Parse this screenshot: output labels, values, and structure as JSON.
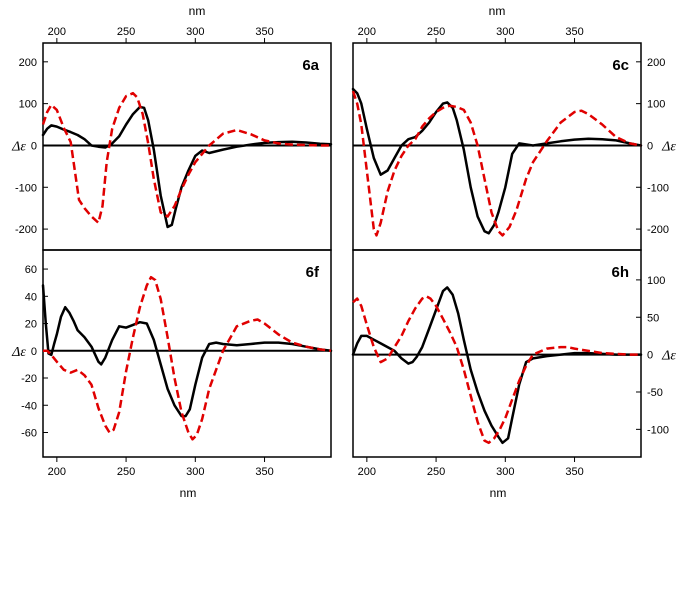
{
  "figure": {
    "top_xlabel": "nm",
    "bottom_xlabel": "nm"
  },
  "chart_data": [
    {
      "type": "line",
      "panel_label": "6a",
      "xlim": [
        190,
        398
      ],
      "ylim": [
        -250,
        245
      ],
      "ylabel": "Δε",
      "xticks": [
        200,
        250,
        300,
        350
      ],
      "yticks": [
        -200,
        -100,
        0,
        100,
        200
      ],
      "series": [
        {
          "style": "solid",
          "color": "#000000",
          "x": [
            190,
            193,
            196,
            200,
            205,
            210,
            215,
            220,
            225,
            230,
            235,
            240,
            245,
            250,
            255,
            260,
            263,
            266,
            270,
            275,
            280,
            283,
            286,
            290,
            295,
            300,
            305,
            310,
            320,
            330,
            340,
            350,
            360,
            370,
            380,
            390,
            398
          ],
          "y": [
            25,
            40,
            48,
            45,
            38,
            32,
            25,
            15,
            0,
            -3,
            -5,
            5,
            22,
            50,
            75,
            92,
            90,
            60,
            -10,
            -120,
            -195,
            -190,
            -150,
            -100,
            -60,
            -25,
            -12,
            -18,
            -10,
            -3,
            2,
            6,
            8,
            9,
            7,
            4,
            3
          ]
        },
        {
          "style": "dashed",
          "color": "#e00000",
          "x": [
            190,
            193,
            196,
            200,
            205,
            210,
            213,
            216,
            220,
            225,
            230,
            233,
            236,
            240,
            245,
            250,
            255,
            258,
            262,
            266,
            270,
            275,
            280,
            285,
            290,
            295,
            300,
            310,
            320,
            330,
            340,
            350,
            360,
            370,
            380,
            390,
            398
          ],
          "y": [
            50,
            80,
            97,
            85,
            42,
            8,
            -60,
            -130,
            -150,
            -170,
            -185,
            -145,
            -40,
            40,
            90,
            118,
            125,
            115,
            75,
            5,
            -80,
            -160,
            -170,
            -145,
            -105,
            -70,
            -40,
            0,
            28,
            37,
            27,
            12,
            5,
            2,
            1,
            0,
            0
          ]
        }
      ]
    },
    {
      "type": "line",
      "panel_label": "6c",
      "xlim": [
        190,
        398
      ],
      "ylim": [
        -250,
        245
      ],
      "ylabel": "Δε",
      "xticks": [
        200,
        250,
        300,
        350
      ],
      "yticks": [
        -200,
        -100,
        0,
        100,
        200
      ],
      "series": [
        {
          "style": "solid",
          "color": "#000000",
          "x": [
            190,
            193,
            196,
            200,
            205,
            210,
            215,
            220,
            225,
            230,
            235,
            240,
            245,
            250,
            255,
            258,
            262,
            265,
            270,
            275,
            280,
            285,
            288,
            292,
            295,
            300,
            305,
            310,
            320,
            330,
            340,
            350,
            360,
            370,
            380,
            390,
            398
          ],
          "y": [
            135,
            125,
            100,
            40,
            -30,
            -70,
            -60,
            -30,
            0,
            15,
            20,
            35,
            55,
            80,
            100,
            103,
            90,
            60,
            -10,
            -100,
            -170,
            -205,
            -210,
            -190,
            -160,
            -100,
            -20,
            5,
            0,
            5,
            10,
            14,
            16,
            15,
            12,
            5,
            0
          ]
        },
        {
          "style": "dashed",
          "color": "#e00000",
          "x": [
            190,
            193,
            196,
            200,
            205,
            207,
            210,
            215,
            220,
            225,
            230,
            235,
            240,
            245,
            250,
            255,
            260,
            265,
            270,
            275,
            280,
            285,
            290,
            295,
            298,
            303,
            308,
            315,
            320,
            330,
            340,
            350,
            355,
            360,
            370,
            380,
            390,
            398
          ],
          "y": [
            130,
            100,
            50,
            -60,
            -200,
            -215,
            -185,
            -110,
            -60,
            -25,
            0,
            15,
            45,
            65,
            80,
            90,
            95,
            92,
            85,
            55,
            0,
            -80,
            -160,
            -205,
            -215,
            -195,
            -155,
            -80,
            -40,
            10,
            55,
            80,
            83,
            75,
            50,
            20,
            5,
            0
          ]
        }
      ]
    },
    {
      "type": "line",
      "panel_label": "6f",
      "xlim": [
        190,
        398
      ],
      "ylim": [
        -78,
        74
      ],
      "ylabel": "Δε",
      "xticks": [
        200,
        250,
        300,
        350
      ],
      "yticks": [
        -60,
        -40,
        -20,
        0,
        20,
        40,
        60
      ],
      "series": [
        {
          "style": "solid",
          "color": "#000000",
          "x": [
            190,
            192,
            194,
            196,
            198,
            200,
            203,
            206,
            209,
            212,
            215,
            220,
            225,
            230,
            232,
            235,
            240,
            245,
            250,
            255,
            260,
            265,
            270,
            275,
            280,
            285,
            290,
            293,
            296,
            300,
            305,
            310,
            315,
            320,
            330,
            340,
            350,
            360,
            370,
            380,
            390,
            398
          ],
          "y": [
            48,
            20,
            -2,
            -3,
            5,
            12,
            25,
            32,
            28,
            22,
            15,
            10,
            3,
            -8,
            -10,
            -5,
            8,
            18,
            17,
            19,
            21,
            20,
            8,
            -10,
            -28,
            -40,
            -48,
            -48,
            -43,
            -25,
            -5,
            5,
            6,
            5,
            4,
            5,
            6,
            6,
            5,
            3,
            1,
            0
          ]
        },
        {
          "style": "dashed",
          "color": "#e00000",
          "x": [
            190,
            193,
            196,
            200,
            205,
            210,
            215,
            220,
            225,
            230,
            235,
            238,
            241,
            245,
            250,
            255,
            260,
            265,
            268,
            271,
            275,
            280,
            285,
            290,
            295,
            298,
            301,
            305,
            310,
            320,
            330,
            340,
            345,
            350,
            360,
            370,
            380,
            390,
            398
          ],
          "y": [
            0,
            0,
            -3,
            -8,
            -14,
            -16,
            -14,
            -18,
            -25,
            -42,
            -55,
            -60,
            -58,
            -45,
            -15,
            10,
            32,
            48,
            54,
            52,
            38,
            10,
            -20,
            -45,
            -60,
            -65,
            -62,
            -50,
            -28,
            0,
            18,
            22,
            23,
            20,
            12,
            6,
            3,
            1,
            0
          ]
        }
      ]
    },
    {
      "type": "line",
      "panel_label": "6h",
      "xlim": [
        190,
        398
      ],
      "ylim": [
        -137,
        140
      ],
      "ylabel": "Δε",
      "xticks": [
        200,
        250,
        300,
        350
      ],
      "yticks": [
        -100,
        -50,
        0,
        50,
        100
      ],
      "series": [
        {
          "style": "solid",
          "color": "#000000",
          "x": [
            190,
            193,
            196,
            200,
            205,
            210,
            215,
            220,
            225,
            230,
            233,
            236,
            240,
            245,
            250,
            255,
            258,
            262,
            266,
            270,
            275,
            280,
            285,
            290,
            295,
            298,
            302,
            305,
            310,
            315,
            320,
            330,
            340,
            350,
            360,
            370,
            380,
            390,
            398
          ],
          "y": [
            0,
            15,
            25,
            25,
            20,
            15,
            10,
            5,
            -5,
            -12,
            -10,
            -3,
            10,
            35,
            60,
            85,
            90,
            80,
            55,
            20,
            -20,
            -50,
            -75,
            -95,
            -110,
            -118,
            -112,
            -85,
            -40,
            -10,
            -5,
            -2,
            0,
            2,
            2,
            1,
            0,
            0,
            0
          ]
        },
        {
          "style": "dashed",
          "color": "#e00000",
          "x": [
            190,
            193,
            196,
            200,
            205,
            210,
            215,
            220,
            225,
            230,
            235,
            240,
            243,
            246,
            250,
            255,
            260,
            265,
            270,
            275,
            280,
            285,
            288,
            292,
            296,
            300,
            305,
            310,
            315,
            320,
            330,
            340,
            345,
            350,
            360,
            370,
            380,
            390,
            398
          ],
          "y": [
            70,
            75,
            65,
            40,
            10,
            -10,
            -5,
            10,
            25,
            45,
            62,
            75,
            78,
            75,
            65,
            48,
            30,
            10,
            -20,
            -55,
            -90,
            -115,
            -118,
            -112,
            -100,
            -85,
            -60,
            -35,
            -15,
            0,
            8,
            10,
            10,
            8,
            5,
            2,
            1,
            0,
            0
          ]
        }
      ]
    }
  ]
}
